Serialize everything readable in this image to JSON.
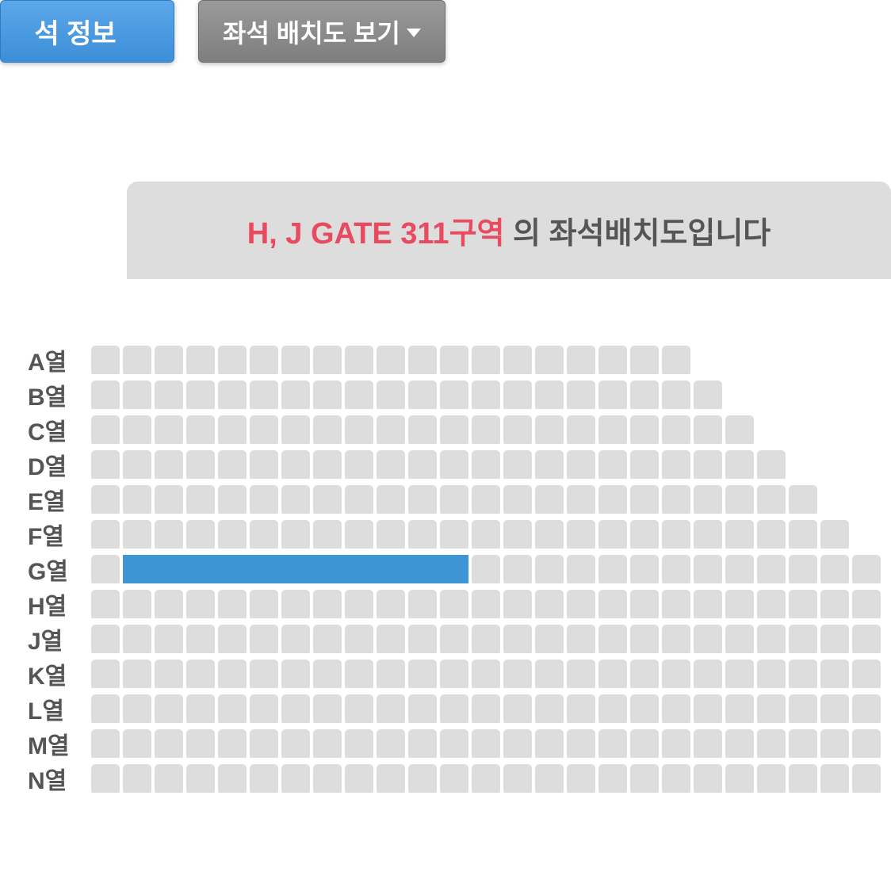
{
  "buttons": {
    "seat_info": "석 정보",
    "view_layout": "좌석 배치도 보기"
  },
  "banner": {
    "highlight": "H, J GATE 311구역",
    "suffix": " 의 좌석배치도입니다"
  },
  "colors": {
    "seat_default": "#dddddd",
    "seat_selected": "#3d95d4",
    "banner_bg": "#dddddd",
    "banner_text": "#555555",
    "highlight_text": "#e84a5f",
    "btn_blue_top": "#5ba7e8",
    "btn_blue_bottom": "#3d8fd9",
    "btn_gray_top": "#9a9a9a",
    "btn_gray_bottom": "#7e7e7e"
  },
  "seat_chart": {
    "type": "seat-map",
    "seat_width": 36,
    "seat_height": 36,
    "seat_gap": 4,
    "seat_radius": 5,
    "rows": [
      {
        "label": "A열",
        "count": 19,
        "selected": []
      },
      {
        "label": "B열",
        "count": 20,
        "selected": []
      },
      {
        "label": "C열",
        "count": 21,
        "selected": []
      },
      {
        "label": "D열",
        "count": 22,
        "selected": []
      },
      {
        "label": "E열",
        "count": 23,
        "selected": []
      },
      {
        "label": "F열",
        "count": 24,
        "selected": []
      },
      {
        "label": "G열",
        "count": 25,
        "selected": [
          1,
          2,
          3,
          4,
          5,
          6,
          7,
          8,
          9,
          10,
          11
        ]
      },
      {
        "label": "H열",
        "count": 25,
        "selected": []
      },
      {
        "label": "J열",
        "count": 25,
        "selected": []
      },
      {
        "label": "K열",
        "count": 25,
        "selected": []
      },
      {
        "label": "L열",
        "count": 25,
        "selected": []
      },
      {
        "label": "M열",
        "count": 25,
        "selected": []
      },
      {
        "label": "N열",
        "count": 25,
        "selected": []
      }
    ]
  }
}
